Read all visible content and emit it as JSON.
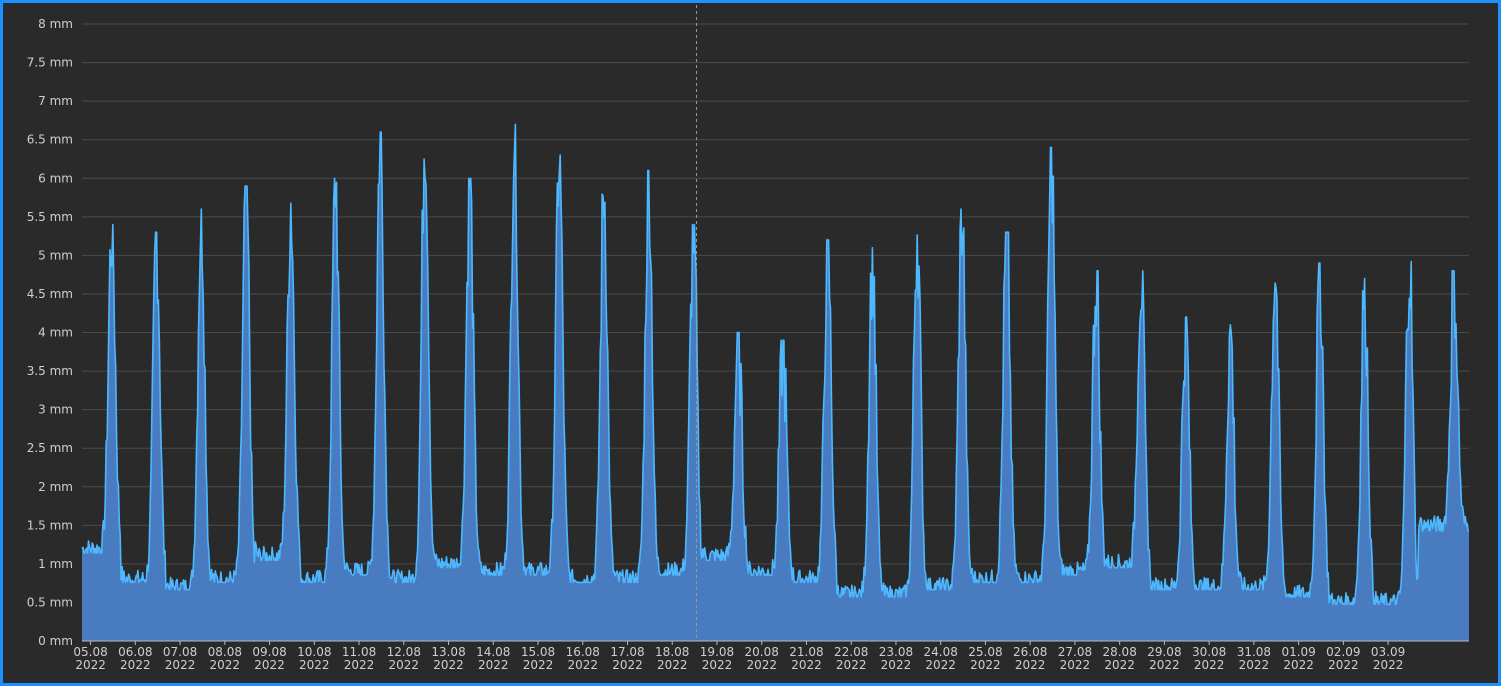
{
  "chart_data": {
    "type": "area",
    "title": "",
    "xlabel": "",
    "ylabel": "",
    "y_unit": "mm",
    "ylim": [
      0,
      8
    ],
    "y_ticks": [
      "0 mm",
      "0.5 mm",
      "1 mm",
      "1.5 mm",
      "2 mm",
      "2.5 mm",
      "3 mm",
      "3.5 mm",
      "4 mm",
      "4.5 mm",
      "5 mm",
      "5.5 mm",
      "6 mm",
      "6.5 mm",
      "7 mm",
      "7.5 mm",
      "8 mm"
    ],
    "x_ticks": [
      {
        "day": "05.08",
        "year": "2022"
      },
      {
        "day": "06.08",
        "year": "2022"
      },
      {
        "day": "07.08",
        "year": "2022"
      },
      {
        "day": "08.08",
        "year": "2022"
      },
      {
        "day": "09.08",
        "year": "2022"
      },
      {
        "day": "10.08",
        "year": "2022"
      },
      {
        "day": "11.08",
        "year": "2022"
      },
      {
        "day": "12.08",
        "year": "2022"
      },
      {
        "day": "13.08",
        "year": "2022"
      },
      {
        "day": "14.08",
        "year": "2022"
      },
      {
        "day": "15.08",
        "year": "2022"
      },
      {
        "day": "16.08",
        "year": "2022"
      },
      {
        "day": "17.08",
        "year": "2022"
      },
      {
        "day": "18.08",
        "year": "2022"
      },
      {
        "day": "19.08",
        "year": "2022"
      },
      {
        "day": "20.08",
        "year": "2022"
      },
      {
        "day": "21.08",
        "year": "2022"
      },
      {
        "day": "22.08",
        "year": "2022"
      },
      {
        "day": "23.08",
        "year": "2022"
      },
      {
        "day": "24.08",
        "year": "2022"
      },
      {
        "day": "25.08",
        "year": "2022"
      },
      {
        "day": "26.08",
        "year": "2022"
      },
      {
        "day": "27.08",
        "year": "2022"
      },
      {
        "day": "28.08",
        "year": "2022"
      },
      {
        "day": "29.08",
        "year": "2022"
      },
      {
        "day": "30.08",
        "year": "2022"
      },
      {
        "day": "31.08",
        "year": "2022"
      },
      {
        "day": "01.09",
        "year": "2022"
      },
      {
        "day": "02.09",
        "year": "2022"
      },
      {
        "day": "03.09",
        "year": "2022"
      }
    ],
    "x_range": [
      "04.08.2022 21:00",
      "04.09.2022 21:00"
    ],
    "grid": true,
    "legend": "none",
    "crosshair_x": "18.08.2022 13:00",
    "series": [
      {
        "color": "#4db8ff",
        "fill": "#4a7fc7",
        "daily": [
          {
            "date": "05.08",
            "min": 1.2,
            "max": 5.4
          },
          {
            "date": "06.08",
            "min": 0.8,
            "max": 5.3
          },
          {
            "date": "07.08",
            "min": 0.7,
            "max": 5.6
          },
          {
            "date": "08.08",
            "min": 0.8,
            "max": 5.9
          },
          {
            "date": "09.08",
            "min": 1.1,
            "max": 5.7
          },
          {
            "date": "10.08",
            "min": 0.8,
            "max": 6.0
          },
          {
            "date": "11.08",
            "min": 0.9,
            "max": 6.6
          },
          {
            "date": "12.08",
            "min": 0.8,
            "max": 6.7
          },
          {
            "date": "13.08",
            "min": 1.0,
            "max": 6.0
          },
          {
            "date": "14.08",
            "min": 0.9,
            "max": 6.7
          },
          {
            "date": "15.08",
            "min": 0.9,
            "max": 6.3
          },
          {
            "date": "16.08",
            "min": 0.8,
            "max": 5.9
          },
          {
            "date": "17.08",
            "min": 0.8,
            "max": 6.1
          },
          {
            "date": "18.08",
            "min": 0.9,
            "max": 5.4
          },
          {
            "date": "19.08",
            "min": 1.1,
            "max": 4.0
          },
          {
            "date": "20.08",
            "min": 0.9,
            "max": 3.9
          },
          {
            "date": "21.08",
            "min": 0.8,
            "max": 5.2
          },
          {
            "date": "22.08",
            "min": 0.6,
            "max": 5.1
          },
          {
            "date": "23.08",
            "min": 0.6,
            "max": 5.4
          },
          {
            "date": "24.08",
            "min": 0.7,
            "max": 5.6
          },
          {
            "date": "25.08",
            "min": 0.8,
            "max": 5.3
          },
          {
            "date": "26.08",
            "min": 0.8,
            "max": 6.4
          },
          {
            "date": "27.08",
            "min": 0.9,
            "max": 4.8
          },
          {
            "date": "28.08",
            "min": 1.0,
            "max": 4.8
          },
          {
            "date": "29.08",
            "min": 0.7,
            "max": 4.2
          },
          {
            "date": "30.08",
            "min": 0.7,
            "max": 4.1
          },
          {
            "date": "31.08",
            "min": 0.7,
            "max": 4.9
          },
          {
            "date": "01.09",
            "min": 0.6,
            "max": 4.9
          },
          {
            "date": "02.09",
            "min": 0.5,
            "max": 4.7
          },
          {
            "date": "03.09",
            "min": 0.5,
            "max": 5.0
          },
          {
            "date": "04.09",
            "min": 1.5,
            "max": 4.8
          }
        ]
      }
    ]
  }
}
